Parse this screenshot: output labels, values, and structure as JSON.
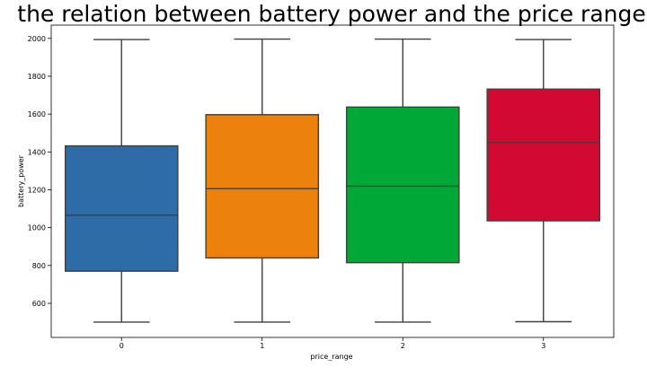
{
  "chart_data": {
    "type": "boxplot",
    "title": "the relation between battery power and the price range",
    "xlabel": "price_range",
    "ylabel": "battery_power",
    "categories": [
      "0",
      "1",
      "2",
      "3"
    ],
    "ylim": [
      420,
      2070
    ],
    "yticks": [
      600,
      800,
      1000,
      1200,
      1400,
      1600,
      1800,
      2000
    ],
    "ytick_labels": [
      "600",
      "800",
      "1000",
      "1200",
      "1400",
      "1600",
      "1800",
      "2000"
    ],
    "boxes": [
      {
        "category": "0",
        "whisker_low": 501,
        "q1": 770,
        "median": 1066,
        "q3": 1432,
        "whisker_high": 1994,
        "color": "#2d6ca6"
      },
      {
        "category": "1",
        "whisker_low": 501,
        "q1": 840,
        "median": 1206,
        "q3": 1597,
        "whisker_high": 1996,
        "color": "#ec810d"
      },
      {
        "category": "2",
        "whisker_low": 501,
        "q1": 815,
        "median": 1219,
        "q3": 1637,
        "whisker_high": 1996,
        "color": "#00a838"
      },
      {
        "category": "3",
        "whisker_low": 503,
        "q1": 1036,
        "median": 1449,
        "q3": 1732,
        "whisker_high": 1994,
        "color": "#d20933"
      }
    ],
    "line_color": "#3f3f3f",
    "grid": false,
    "legend": "none"
  }
}
